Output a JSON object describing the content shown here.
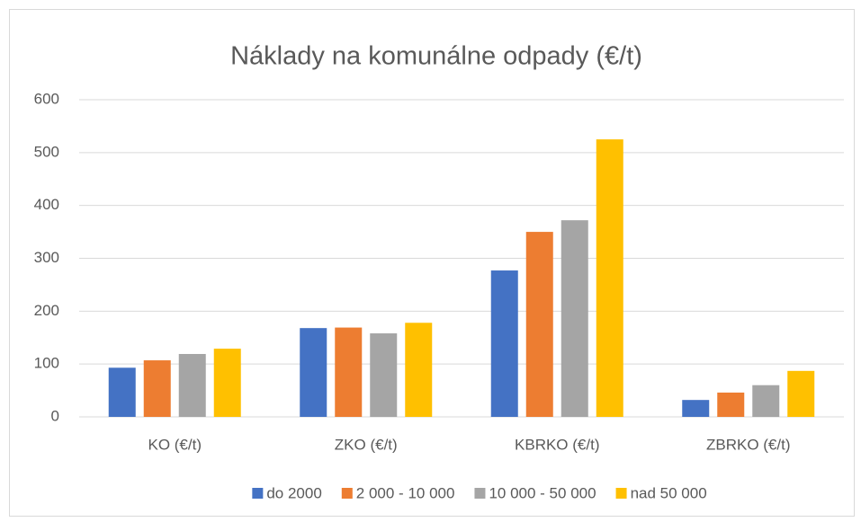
{
  "chart_data": {
    "type": "bar",
    "title": "Náklady na komunálne odpady (€/t)",
    "categories": [
      "KO (€/t)",
      "ZKO (€/t)",
      "KBRKO (€/t)",
      "ZBRKO (€/t)"
    ],
    "series": [
      {
        "name": "do 2000",
        "color": "#4472c4",
        "values": [
          93,
          168,
          277,
          32
        ]
      },
      {
        "name": "2 000 - 10 000",
        "color": "#ed7d31",
        "values": [
          107,
          169,
          350,
          46
        ]
      },
      {
        "name": "10 000 - 50 000",
        "color": "#a5a5a5",
        "values": [
          119,
          158,
          372,
          60
        ]
      },
      {
        "name": "nad 50 000",
        "color": "#ffc000",
        "values": [
          129,
          178,
          525,
          87
        ]
      }
    ],
    "ylim": [
      0,
      600
    ],
    "yticks": [
      0,
      100,
      200,
      300,
      400,
      500,
      600
    ],
    "grid": true,
    "legend": "bottom"
  }
}
